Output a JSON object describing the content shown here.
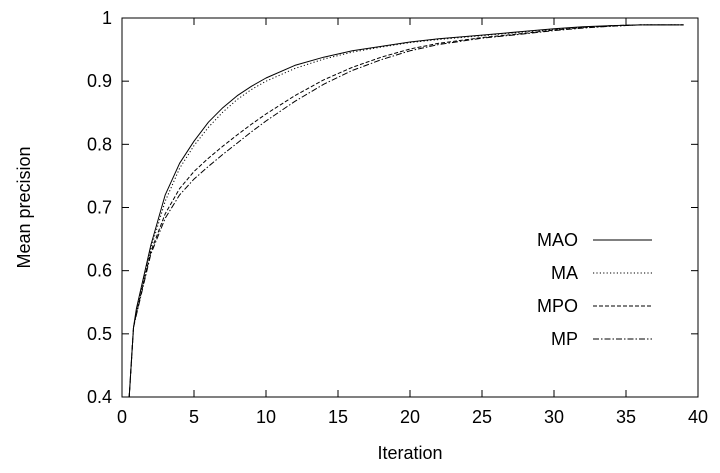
{
  "chart_data": {
    "type": "line",
    "title": "",
    "xlabel": "Iteration",
    "ylabel": "Mean precision",
    "xlim": [
      0,
      40
    ],
    "ylim": [
      0.4,
      1.0
    ],
    "xticks": [
      0,
      5,
      10,
      15,
      20,
      25,
      30,
      35,
      40
    ],
    "xtick_labels": [
      "0",
      "5",
      "10",
      "15",
      "20",
      "25",
      "30",
      "35",
      "40"
    ],
    "yticks": [
      0.4,
      0.5,
      0.6,
      0.7,
      0.8,
      0.9,
      1.0
    ],
    "ytick_labels": [
      "0.4",
      "0.5",
      "0.6",
      "0.7",
      "0.8",
      "0.9",
      "1"
    ],
    "grid": false,
    "legend_position": "center-right",
    "series": [
      {
        "name": "MAO",
        "line_style": "solid",
        "x": [
          0.5,
          0.8,
          1,
          2,
          3,
          4,
          5,
          6,
          7,
          8,
          9,
          10,
          12,
          14,
          16,
          18,
          20,
          22,
          25,
          28,
          30,
          32,
          34,
          36,
          39
        ],
        "y": [
          0.4,
          0.51,
          0.54,
          0.64,
          0.72,
          0.77,
          0.805,
          0.835,
          0.858,
          0.877,
          0.892,
          0.905,
          0.925,
          0.938,
          0.948,
          0.955,
          0.962,
          0.967,
          0.973,
          0.979,
          0.983,
          0.986,
          0.988,
          0.989,
          0.989
        ]
      },
      {
        "name": "MA",
        "line_style": "dotted",
        "x": [
          0.5,
          0.8,
          1,
          2,
          3,
          4,
          5,
          6,
          7,
          8,
          9,
          10,
          12,
          14,
          16,
          18,
          20,
          22,
          25,
          28,
          30,
          32,
          34,
          36,
          39
        ],
        "y": [
          0.4,
          0.51,
          0.535,
          0.635,
          0.71,
          0.762,
          0.798,
          0.827,
          0.851,
          0.871,
          0.887,
          0.9,
          0.92,
          0.935,
          0.946,
          0.954,
          0.961,
          0.966,
          0.972,
          0.978,
          0.982,
          0.985,
          0.987,
          0.989,
          0.989
        ]
      },
      {
        "name": "MPO",
        "line_style": "dashed",
        "x": [
          0.5,
          0.8,
          1,
          2,
          3,
          4,
          5,
          6,
          7,
          8,
          9,
          10,
          12,
          14,
          16,
          18,
          20,
          22,
          25,
          28,
          30,
          32,
          34,
          36,
          39
        ],
        "y": [
          0.4,
          0.51,
          0.532,
          0.63,
          0.69,
          0.73,
          0.757,
          0.778,
          0.797,
          0.815,
          0.832,
          0.848,
          0.877,
          0.902,
          0.922,
          0.938,
          0.951,
          0.96,
          0.969,
          0.976,
          0.981,
          0.985,
          0.988,
          0.989,
          0.989
        ]
      },
      {
        "name": "MP",
        "line_style": "dash-dot",
        "x": [
          0.5,
          0.8,
          1,
          2,
          3,
          4,
          5,
          6,
          7,
          8,
          9,
          10,
          12,
          14,
          16,
          18,
          20,
          22,
          25,
          28,
          30,
          32,
          34,
          36,
          39
        ],
        "y": [
          0.4,
          0.51,
          0.53,
          0.626,
          0.683,
          0.72,
          0.745,
          0.765,
          0.784,
          0.802,
          0.82,
          0.837,
          0.868,
          0.895,
          0.917,
          0.934,
          0.948,
          0.958,
          0.968,
          0.975,
          0.98,
          0.984,
          0.987,
          0.989,
          0.989
        ]
      }
    ]
  }
}
